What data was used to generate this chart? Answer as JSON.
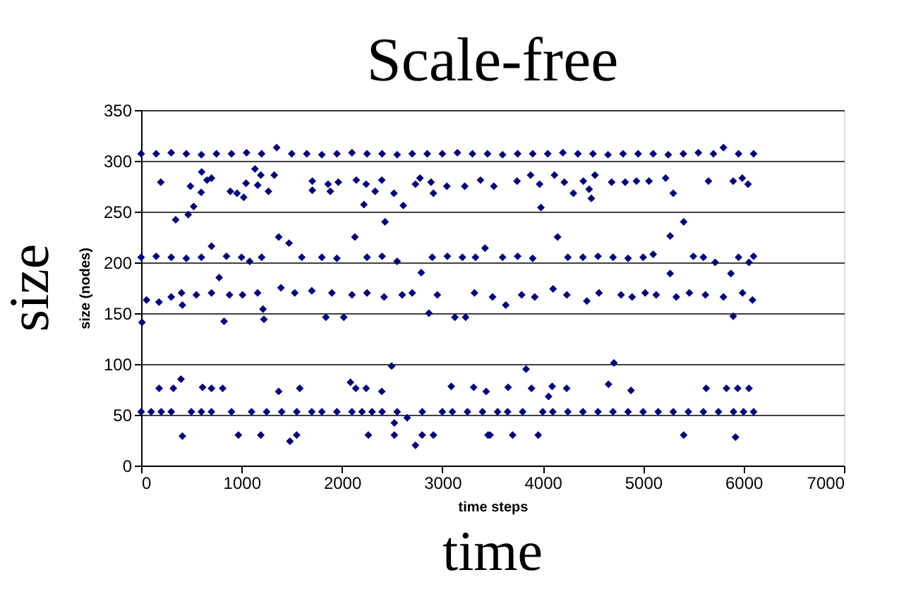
{
  "chart_data": {
    "type": "scatter",
    "title": "Scale-free",
    "xlabel": "time steps",
    "ylabel": "size (nodes)",
    "annotations": [
      "size",
      "time"
    ],
    "marker": "diamond",
    "grid": "y",
    "xlim": [
      0,
      7000
    ],
    "xticks": [
      0,
      1000,
      2000,
      3000,
      4000,
      5000,
      6000,
      7000
    ],
    "ylim": [
      0,
      350
    ],
    "yticks": [
      0,
      50,
      100,
      150,
      200,
      250,
      300,
      350
    ],
    "series": [
      {
        "color": "#000080",
        "x": [
          0,
          150,
          300,
          450,
          600,
          750,
          900,
          1050,
          1200,
          1350,
          1500,
          1650,
          1800,
          1950,
          2100,
          2250,
          2400,
          2550,
          2700,
          2850,
          3000,
          3150,
          3300,
          3450,
          3600,
          3750,
          3900,
          4050,
          4200,
          4350,
          4500,
          4650,
          4800,
          4950,
          5100,
          5250,
          5400,
          5550,
          5700,
          5800,
          5950,
          6100,
          196,
          344,
          469,
          491,
          523,
          598,
          603,
          656,
          701,
          888,
          955,
          1022,
          1045,
          1134,
          1161,
          1192,
          1268,
          1326,
          1705,
          1705,
          1862,
          1884,
          1964,
          2143,
          2219,
          2241,
          2331,
          2397,
          2429,
          2518,
          2611,
          2732,
          2777,
          2888,
          2911,
          3045,
          3223,
          3380,
          3513,
          3744,
          3879,
          3969,
          3982,
          4117,
          4215,
          4305,
          4404,
          4462,
          4484,
          4520,
          4686,
          4821,
          4933,
          5058,
          5224,
          5300,
          5650,
          5897,
          5987,
          6045,
          0,
          150,
          300,
          450,
          600,
          701,
          850,
          1000,
          1081,
          1200,
          1370,
          1473,
          1600,
          1800,
          1950,
          2129,
          2250,
          2400,
          2550,
          2790,
          2900,
          3050,
          3200,
          3330,
          3425,
          3600,
          3750,
          3900,
          4148,
          4250,
          4400,
          4550,
          4700,
          4850,
          5000,
          5100,
          5269,
          5269,
          5404,
          5500,
          5600,
          5717,
          5874,
          5950,
          6054,
          6100,
          9,
          54,
          178,
          300,
          402,
          411,
          550,
          701,
          777,
          826,
          880,
          1010,
          1160,
          1214,
          1223,
          1393,
          1530,
          1700,
          1840,
          1900,
          2018,
          2100,
          2250,
          2420,
          2600,
          2700,
          2866,
          2950,
          3125,
          3232,
          3320,
          3500,
          3632,
          3790,
          3920,
          4103,
          4240,
          4439,
          4560,
          4780,
          4890,
          5020,
          5130,
          5330,
          5460,
          5620,
          5800,
          5897,
          5990,
          6089,
          0,
          100,
          200,
          300,
          500,
          600,
          700,
          900,
          1100,
          1250,
          1400,
          1550,
          1700,
          1800,
          1950,
          2100,
          2200,
          2300,
          2400,
          2550,
          2650,
          2800,
          3000,
          3100,
          3250,
          3400,
          3550,
          3650,
          3800,
          4000,
          4100,
          4250,
          4400,
          4550,
          4700,
          4850,
          5000,
          5150,
          5300,
          5450,
          5600,
          5750,
          5900,
          6000,
          6100,
          179,
          321,
          397,
          612,
          701,
          812,
          1370,
          1580,
          2085,
          2138,
          2241,
          2397,
          2495,
          3089,
          3312,
          3437,
          3655,
          3834,
          3888,
          4058,
          4094,
          4238,
          4655,
          4709,
          4879,
          5628,
          5830,
          5942,
          6054,
          411,
          969,
          1192,
          1482,
          1549,
          2263,
          2522,
          2522,
          2732,
          2799,
          2911,
          3455,
          3475,
          3700,
          3955,
          5404,
          5920
        ],
        "values": [
          307,
          307,
          308,
          307,
          306,
          307,
          307,
          308,
          307,
          313,
          307,
          307,
          306,
          307,
          308,
          307,
          307,
          306,
          307,
          307,
          307,
          308,
          307,
          307,
          306,
          307,
          307,
          307,
          308,
          307,
          307,
          306,
          307,
          307,
          307,
          306,
          307,
          308,
          307,
          313,
          307,
          307,
          279,
          242,
          247,
          275,
          255,
          269,
          289,
          281,
          283,
          270,
          268,
          264,
          278,
          292,
          276,
          286,
          270,
          286,
          280,
          271,
          277,
          270,
          279,
          281,
          257,
          277,
          270,
          281,
          240,
          268,
          256,
          277,
          283,
          279,
          268,
          275,
          275,
          281,
          275,
          280,
          286,
          277,
          254,
          286,
          279,
          268,
          280,
          272,
          263,
          286,
          279,
          279,
          280,
          280,
          283,
          268,
          280,
          280,
          283,
          277,
          205,
          206,
          205,
          204,
          205,
          216,
          206,
          205,
          201,
          205,
          225,
          219,
          205,
          205,
          204,
          225,
          205,
          206,
          201,
          190,
          205,
          206,
          205,
          205,
          214,
          205,
          206,
          204,
          225,
          205,
          205,
          206,
          205,
          204,
          205,
          208,
          226,
          189,
          240,
          206,
          205,
          200,
          189,
          205,
          200,
          206,
          141,
          163,
          161,
          166,
          170,
          158,
          168,
          170,
          185,
          142,
          168,
          168,
          170,
          154,
          144,
          175,
          170,
          172,
          146,
          170,
          146,
          168,
          170,
          166,
          168,
          170,
          150,
          168,
          146,
          146,
          170,
          166,
          158,
          168,
          166,
          174,
          168,
          162,
          170,
          168,
          166,
          170,
          168,
          166,
          170,
          168,
          166,
          147,
          170,
          163,
          53,
          53,
          53,
          53,
          53,
          53,
          53,
          53,
          53,
          53,
          53,
          53,
          53,
          53,
          53,
          53,
          53,
          53,
          53,
          53,
          47,
          53,
          53,
          53,
          53,
          53,
          53,
          53,
          53,
          53,
          53,
          53,
          53,
          53,
          53,
          53,
          53,
          53,
          53,
          53,
          53,
          53,
          53,
          53,
          53,
          76,
          76,
          85,
          77,
          76,
          76,
          73,
          76,
          82,
          76,
          76,
          73,
          98,
          78,
          77,
          73,
          77,
          95,
          76,
          68,
          78,
          76,
          80,
          101,
          74,
          76,
          76,
          76,
          76,
          29,
          30,
          30,
          24,
          30,
          30,
          42,
          30,
          20,
          30,
          30,
          30,
          30,
          30,
          30,
          30,
          28
        ]
      }
    ]
  }
}
